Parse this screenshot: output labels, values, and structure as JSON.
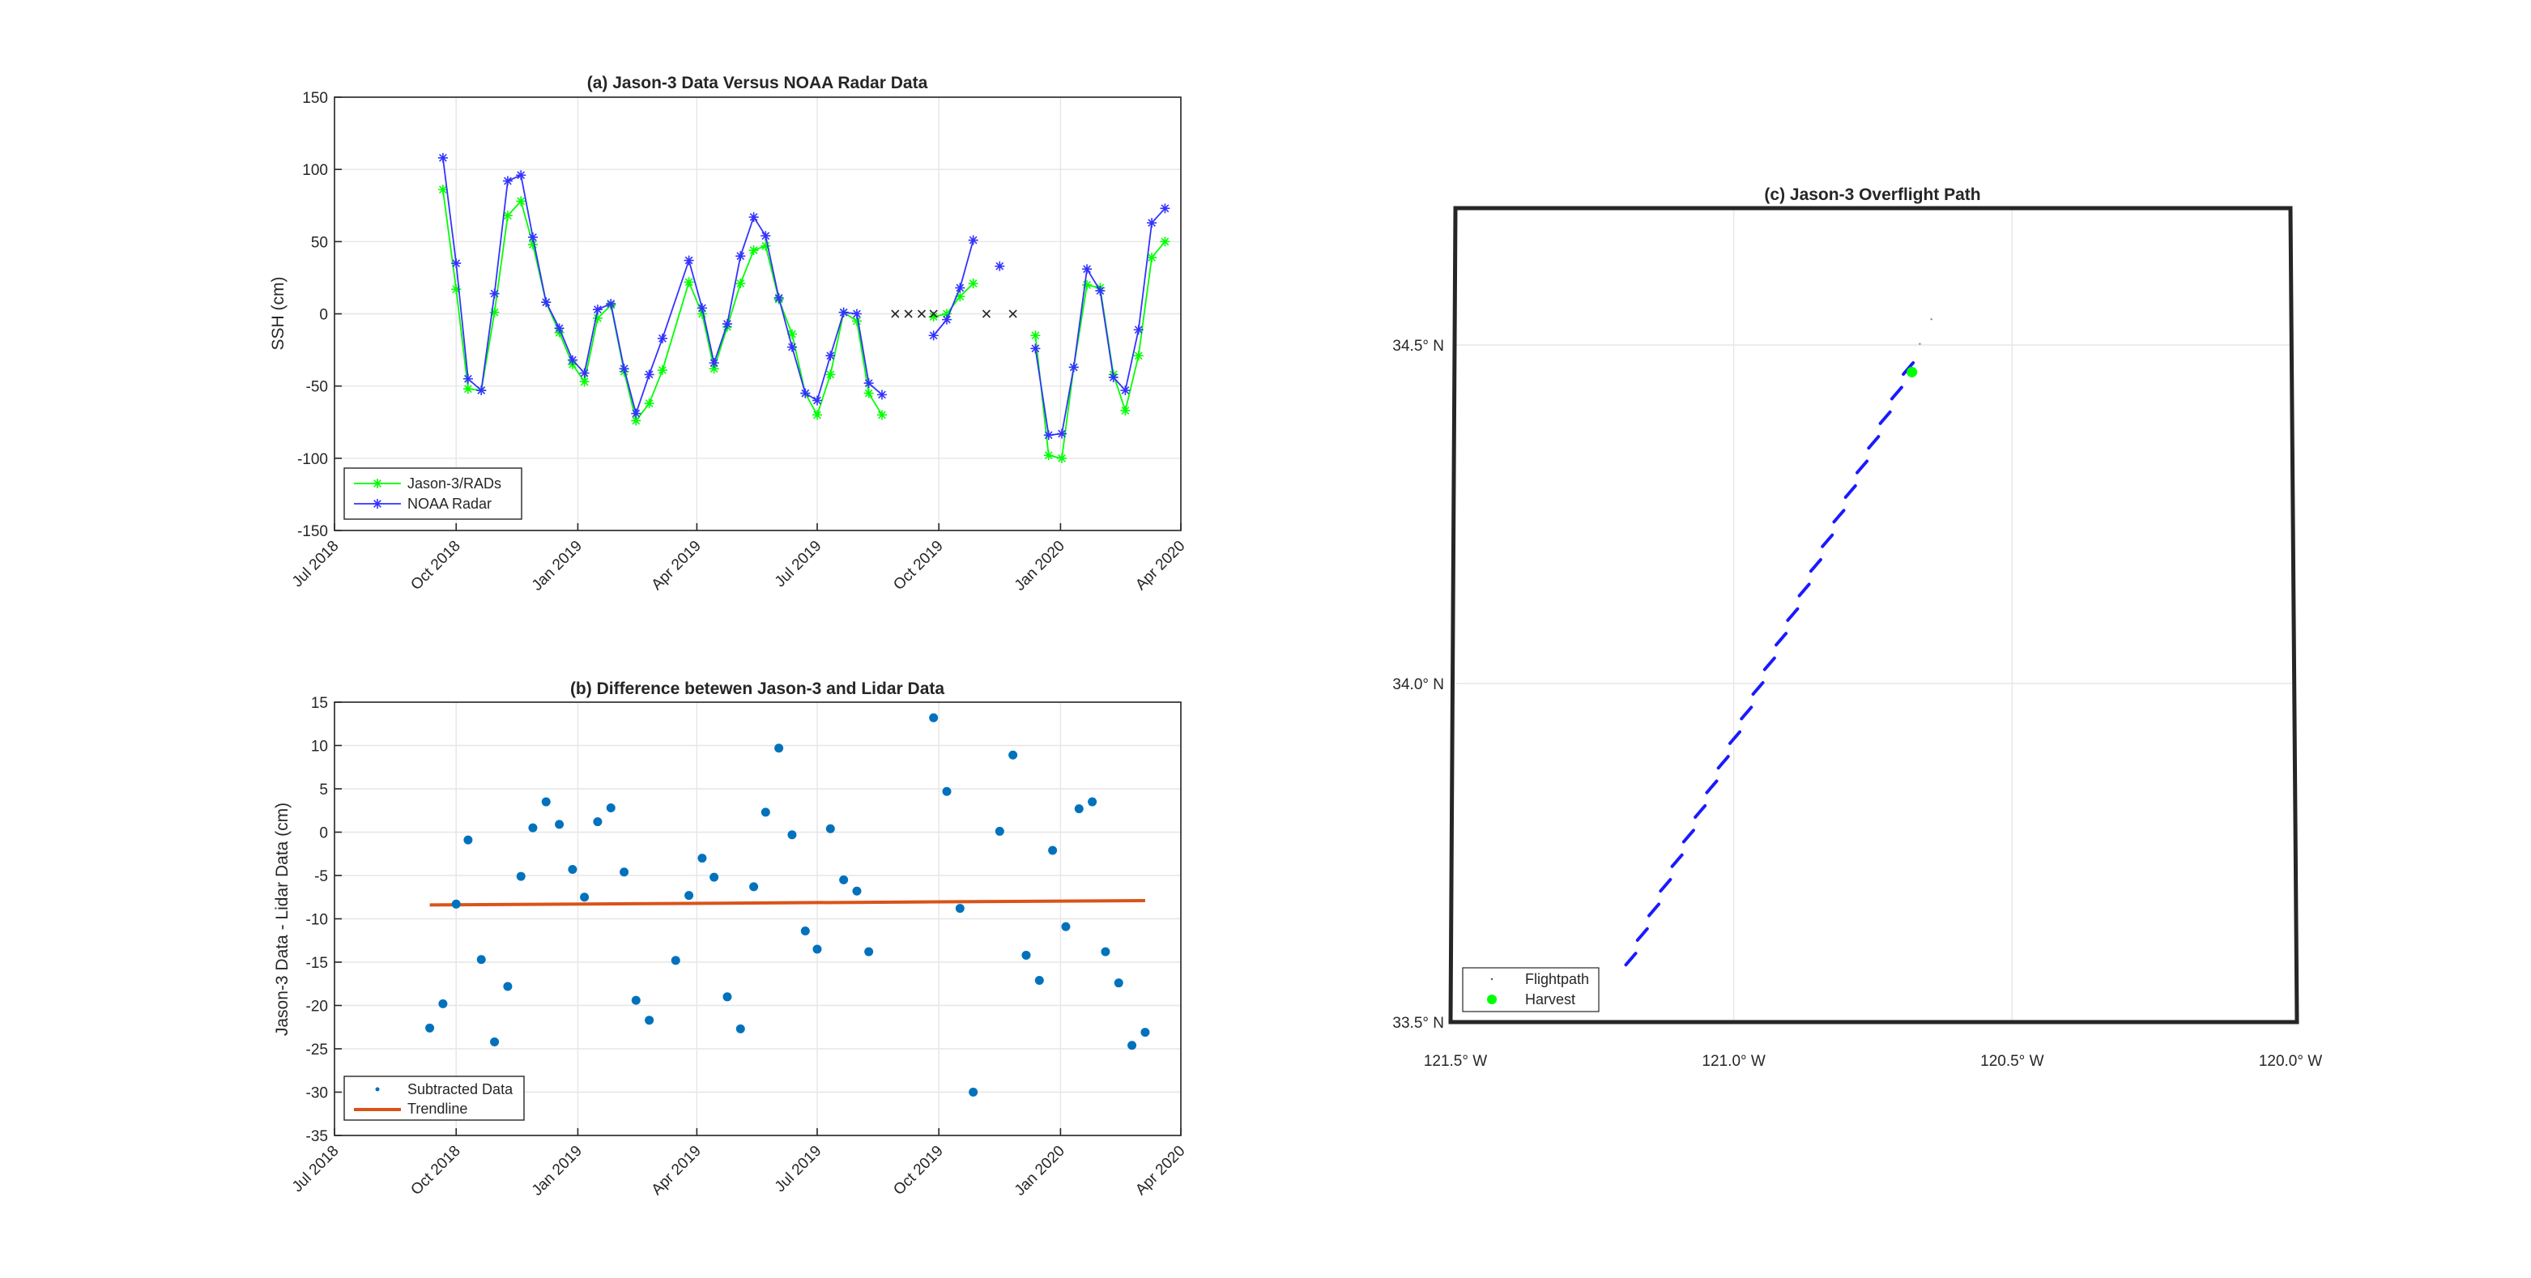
{
  "colors": {
    "jason": "#00ff00",
    "noaa": "#3333ff",
    "gap_marker": "#262626",
    "scatter": "#0072bd",
    "trend": "#d95319",
    "flightpath": "#1a1aff",
    "harvest": "#00ff00"
  },
  "chart_data": [
    {
      "type": "line",
      "title": "(a) Jason-3 Data Versus NOAA Radar Data",
      "xlabel": "",
      "ylabel": "SSH (cm)",
      "x_ticks": [
        "Jul 2018",
        "Oct 2018",
        "Jan 2019",
        "Apr 2019",
        "Jul 2019",
        "Oct 2019",
        "Jan 2020",
        "Apr 2020"
      ],
      "x_tick_dates": [
        "2018-07-01",
        "2018-10-01",
        "2019-01-01",
        "2019-04-01",
        "2019-07-01",
        "2019-10-01",
        "2020-01-01",
        "2020-04-01"
      ],
      "xlim": [
        "2018-07-01",
        "2020-04-01"
      ],
      "ylim": [
        -150,
        150
      ],
      "y_ticks": [
        "-150",
        "-100",
        "-50",
        "0",
        "50",
        "100",
        "150"
      ],
      "y_tick_values": [
        -150,
        -100,
        -50,
        0,
        50,
        100,
        150
      ],
      "grid": true,
      "legend_location": "bottom-left",
      "series": [
        {
          "name": "Jason-3/RADs",
          "segments": [
            [
              [
                "2018-09-21",
                86
              ],
              [
                "2018-10-01",
                17
              ],
              [
                "2018-10-10",
                -52
              ],
              [
                "2018-10-20",
                -53
              ],
              [
                "2018-10-30",
                1
              ],
              [
                "2018-11-09",
                68
              ],
              [
                "2018-11-19",
                78
              ],
              [
                "2018-11-28",
                48
              ],
              [
                "2018-12-08",
                8
              ],
              [
                "2018-12-18",
                -13
              ],
              [
                "2018-12-28",
                -35
              ],
              [
                "2019-01-06",
                -47
              ],
              [
                "2019-01-16",
                -3
              ],
              [
                "2019-01-26",
                6
              ],
              [
                "2019-02-05",
                -40
              ],
              [
                "2019-02-14",
                -74
              ],
              [
                "2019-02-24",
                -62
              ],
              [
                "2019-03-06",
                -39
              ],
              [
                "2019-03-26",
                22
              ],
              [
                "2019-04-05",
                0
              ],
              [
                "2019-04-14",
                -38
              ],
              [
                "2019-04-24",
                -9
              ],
              [
                "2019-05-04",
                21
              ],
              [
                "2019-05-14",
                44
              ],
              [
                "2019-05-23",
                47
              ],
              [
                "2019-06-02",
                10
              ],
              [
                "2019-06-12",
                -14
              ],
              [
                "2019-06-22",
                -55
              ],
              [
                "2019-07-01",
                -70
              ],
              [
                "2019-07-11",
                -42
              ],
              [
                "2019-07-21",
                1
              ],
              [
                "2019-07-31",
                -5
              ],
              [
                "2019-08-09",
                -55
              ],
              [
                "2019-08-19",
                -70
              ]
            ],
            [
              [
                "2019-09-27",
                -2
              ],
              [
                "2019-10-07",
                0
              ],
              [
                "2019-10-17",
                12
              ],
              [
                "2019-10-27",
                21
              ]
            ],
            [
              [
                "2019-12-13",
                -15
              ],
              [
                "2019-12-23",
                -98
              ],
              [
                "2020-01-02",
                -100
              ],
              [
                "2020-01-11",
                -37
              ],
              [
                "2020-01-21",
                20
              ],
              [
                "2020-01-31",
                18
              ],
              [
                "2020-02-10",
                -42
              ],
              [
                "2020-02-19",
                -67
              ],
              [
                "2020-02-29",
                -29
              ],
              [
                "2020-03-10",
                39
              ],
              [
                "2020-03-20",
                50
              ]
            ]
          ]
        },
        {
          "name": "NOAA Radar",
          "segments": [
            [
              [
                "2018-09-21",
                108
              ],
              [
                "2018-10-01",
                35
              ],
              [
                "2018-10-10",
                -45
              ],
              [
                "2018-10-20",
                -53
              ],
              [
                "2018-10-30",
                14
              ],
              [
                "2018-11-09",
                92
              ],
              [
                "2018-11-19",
                96
              ],
              [
                "2018-11-28",
                53
              ],
              [
                "2018-12-08",
                8
              ],
              [
                "2018-12-18",
                -10
              ],
              [
                "2018-12-28",
                -32
              ],
              [
                "2019-01-06",
                -41
              ],
              [
                "2019-01-16",
                3
              ],
              [
                "2019-01-26",
                7
              ],
              [
                "2019-02-05",
                -38
              ],
              [
                "2019-02-14",
                -69
              ],
              [
                "2019-02-24",
                -42
              ],
              [
                "2019-03-06",
                -17
              ],
              [
                "2019-03-26",
                37
              ],
              [
                "2019-04-05",
                4
              ],
              [
                "2019-04-14",
                -34
              ],
              [
                "2019-04-24",
                -7
              ],
              [
                "2019-05-04",
                40
              ],
              [
                "2019-05-14",
                67
              ],
              [
                "2019-05-23",
                54
              ],
              [
                "2019-06-02",
                11
              ],
              [
                "2019-06-12",
                -23
              ],
              [
                "2019-06-22",
                -55
              ],
              [
                "2019-07-01",
                -60
              ],
              [
                "2019-07-11",
                -29
              ],
              [
                "2019-07-21",
                1
              ],
              [
                "2019-07-31",
                0
              ],
              [
                "2019-08-09",
                -48
              ],
              [
                "2019-08-19",
                -56
              ]
            ],
            [
              [
                "2019-09-27",
                -15
              ],
              [
                "2019-10-07",
                -4
              ],
              [
                "2019-10-17",
                18
              ],
              [
                "2019-10-27",
                51
              ]
            ],
            [
              [
                "2019-11-16",
                33
              ]
            ],
            [
              [
                "2019-12-13",
                -24
              ],
              [
                "2019-12-23",
                -84
              ],
              [
                "2020-01-02",
                -83
              ],
              [
                "2020-01-11",
                -37
              ],
              [
                "2020-01-21",
                31
              ],
              [
                "2020-01-31",
                16
              ],
              [
                "2020-02-10",
                -44
              ],
              [
                "2020-02-19",
                -53
              ],
              [
                "2020-02-29",
                -11
              ],
              [
                "2020-03-10",
                63
              ],
              [
                "2020-03-20",
                73
              ]
            ]
          ]
        },
        {
          "name": "",
          "marker": "x",
          "points": [
            [
              "2019-08-29",
              0
            ],
            [
              "2019-09-08",
              0
            ],
            [
              "2019-09-18",
              0
            ],
            [
              "2019-09-27",
              0
            ],
            [
              "2019-11-06",
              0
            ],
            [
              "2019-11-26",
              0
            ]
          ]
        }
      ]
    },
    {
      "type": "scatter",
      "title": "(b) Difference betewen Jason-3 and Lidar Data",
      "xlabel": "",
      "ylabel": "Jason-3 Data - Lidar Data (cm)",
      "x_ticks": [
        "Jul 2018",
        "Oct 2018",
        "Jan 2019",
        "Apr 2019",
        "Jul 2019",
        "Oct 2019",
        "Jan 2020",
        "Apr 2020"
      ],
      "x_tick_dates": [
        "2018-07-01",
        "2018-10-01",
        "2019-01-01",
        "2019-04-01",
        "2019-07-01",
        "2019-10-01",
        "2020-01-01",
        "2020-04-01"
      ],
      "xlim": [
        "2018-07-01",
        "2020-04-01"
      ],
      "ylim": [
        -35,
        15
      ],
      "y_ticks": [
        "-35",
        "-30",
        "-25",
        "-20",
        "-15",
        "-10",
        "-5",
        "0",
        "5",
        "10",
        "15"
      ],
      "y_tick_values": [
        -35,
        -30,
        -25,
        -20,
        -15,
        -10,
        -5,
        0,
        5,
        10,
        15
      ],
      "grid": true,
      "legend_location": "bottom-left",
      "series": [
        {
          "name": "Subtracted Data",
          "points": [
            [
              "2018-09-11",
              -22.6
            ],
            [
              "2018-09-21",
              -19.8
            ],
            [
              "2018-10-01",
              -8.3
            ],
            [
              "2018-10-10",
              -0.9
            ],
            [
              "2018-10-20",
              -14.7
            ],
            [
              "2018-10-30",
              -24.2
            ],
            [
              "2018-11-09",
              -17.8
            ],
            [
              "2018-11-19",
              -5.1
            ],
            [
              "2018-11-28",
              0.5
            ],
            [
              "2018-12-08",
              3.5
            ],
            [
              "2018-12-18",
              0.9
            ],
            [
              "2018-12-28",
              -4.3
            ],
            [
              "2019-01-06",
              -7.5
            ],
            [
              "2019-01-16",
              1.2
            ],
            [
              "2019-01-26",
              2.8
            ],
            [
              "2019-02-05",
              -4.6
            ],
            [
              "2019-02-14",
              -19.4
            ],
            [
              "2019-02-24",
              -21.7
            ],
            [
              "2019-03-16",
              -14.8
            ],
            [
              "2019-03-26",
              -7.3
            ],
            [
              "2019-04-05",
              -3.0
            ],
            [
              "2019-04-14",
              -5.2
            ],
            [
              "2019-04-24",
              -19.0
            ],
            [
              "2019-05-04",
              -22.7
            ],
            [
              "2019-05-14",
              -6.3
            ],
            [
              "2019-05-23",
              2.3
            ],
            [
              "2019-06-02",
              9.7
            ],
            [
              "2019-06-12",
              -0.3
            ],
            [
              "2019-06-22",
              -11.4
            ],
            [
              "2019-07-01",
              -13.5
            ],
            [
              "2019-07-11",
              0.4
            ],
            [
              "2019-07-21",
              -5.5
            ],
            [
              "2019-07-31",
              -6.8
            ],
            [
              "2019-08-09",
              -13.8
            ],
            [
              "2019-09-27",
              13.2
            ],
            [
              "2019-10-07",
              4.7
            ],
            [
              "2019-10-17",
              -8.8
            ],
            [
              "2019-10-27",
              -30.0
            ],
            [
              "2019-11-16",
              0.1
            ],
            [
              "2019-11-26",
              8.9
            ],
            [
              "2019-12-06",
              -14.2
            ],
            [
              "2019-12-16",
              -17.1
            ],
            [
              "2019-12-26",
              -2.1
            ],
            [
              "2020-01-05",
              -10.9
            ],
            [
              "2020-01-15",
              2.7
            ],
            [
              "2020-01-25",
              3.5
            ],
            [
              "2020-02-04",
              -13.8
            ],
            [
              "2020-02-14",
              -17.4
            ],
            [
              "2020-02-24",
              -24.6
            ],
            [
              "2020-03-05",
              -23.1
            ]
          ]
        },
        {
          "name": "Trendline",
          "points": [
            [
              "2018-09-11",
              -8.4
            ],
            [
              "2020-03-05",
              -7.9
            ]
          ]
        }
      ]
    },
    {
      "type": "scatter",
      "title": "(c) Jason-3 Overflight Path",
      "x_ticks": [
        "121.5° W",
        "121.0° W",
        "120.5° W",
        "120.0° W"
      ],
      "x_tick_values": [
        -121.5,
        -121.0,
        -120.5,
        -120.0
      ],
      "y_ticks": [
        "33.5° N",
        "34.0° N",
        "34.5° N"
      ],
      "y_tick_values": [
        33.5,
        34.0,
        34.5
      ],
      "xlim": [
        -121.5,
        -120.0
      ],
      "ylim": [
        33.5,
        34.5
      ],
      "grid": true,
      "legend_location": "bottom-left",
      "series": [
        {
          "name": "Flightpath",
          "start": [
            -121.185,
            33.593
          ],
          "end": [
            -120.645,
            34.538
          ],
          "clusters": 27
        },
        {
          "name": "Harvest",
          "points": [
            [
              -120.68,
              34.46
            ]
          ]
        }
      ]
    }
  ]
}
